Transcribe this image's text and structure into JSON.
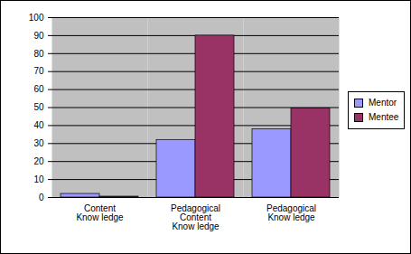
{
  "chart_data": {
    "type": "bar",
    "categories": [
      "Content\nKnow ledge",
      "Pedagogical\nContent\nKnow ledge",
      "Pedagogical\nKnow ledge"
    ],
    "series": [
      {
        "name": "Mentor",
        "color": "#9999ff",
        "values": [
          2,
          32,
          38
        ]
      },
      {
        "name": "Mentee",
        "color": "#993366",
        "values": [
          0.5,
          90,
          49.5
        ]
      }
    ],
    "ylim": [
      0,
      100
    ],
    "yticks": [
      0,
      10,
      20,
      30,
      40,
      50,
      60,
      70,
      80,
      90,
      100
    ],
    "grid": true,
    "legend": "right"
  }
}
